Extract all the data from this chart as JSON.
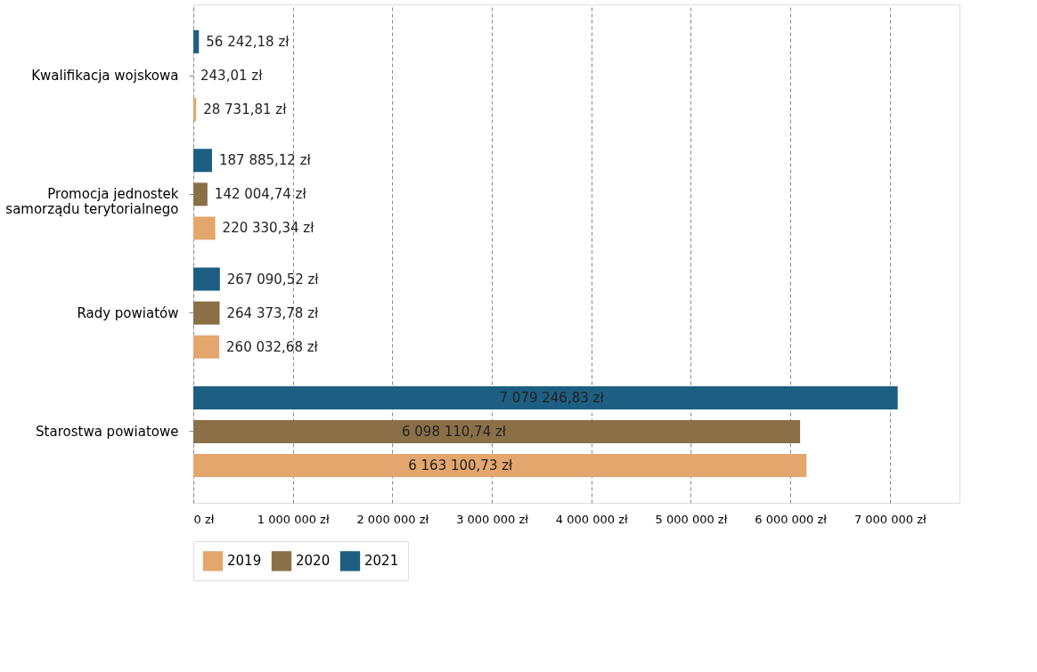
{
  "chart_data": {
    "type": "bar",
    "orientation": "horizontal",
    "categories": [
      "Kwalifikacja wojskowa",
      "Promocja jednostek samorządu terytorialnego",
      "Rady powiatów",
      "Starostwa powiatowe"
    ],
    "series": [
      {
        "name": "2019",
        "color": "#e3a66c",
        "values": [
          28731.81,
          220330.34,
          260032.68,
          6163100.73
        ],
        "value_labels": [
          "28 731,81 zł",
          "220 330,34 zł",
          "260 032,68 zł",
          "6 163 100,73 zł"
        ]
      },
      {
        "name": "2020",
        "color": "#8a6f47",
        "values": [
          243.01,
          142004.74,
          264373.78,
          6098110.74
        ],
        "value_labels": [
          "243,01 zł",
          "142 004,74 zł",
          "264 373,78 zł",
          "6 098 110,74 zł"
        ]
      },
      {
        "name": "2021",
        "color": "#1d5f82",
        "values": [
          56242.18,
          187885.12,
          267090.52,
          7079246.83
        ],
        "value_labels": [
          "56 242,18 zł",
          "187 885,12 zł",
          "267 090,52 zł",
          "7 079 246,83 zł"
        ]
      }
    ],
    "xlim": [
      0,
      7700000
    ],
    "xticks": [
      {
        "value": 0,
        "label": "0 zł"
      },
      {
        "value": 1000000,
        "label": "1 000 000 zł"
      },
      {
        "value": 2000000,
        "label": "2 000 000 zł"
      },
      {
        "value": 3000000,
        "label": "3 000 000 zł"
      },
      {
        "value": 4000000,
        "label": "4 000 000 zł"
      },
      {
        "value": 5000000,
        "label": "5 000 000 zł"
      },
      {
        "value": 6000000,
        "label": "6 000 000 zł"
      },
      {
        "value": 7000000,
        "label": "7 000 000 zł"
      }
    ],
    "grid": "x",
    "legend": "bottom"
  }
}
